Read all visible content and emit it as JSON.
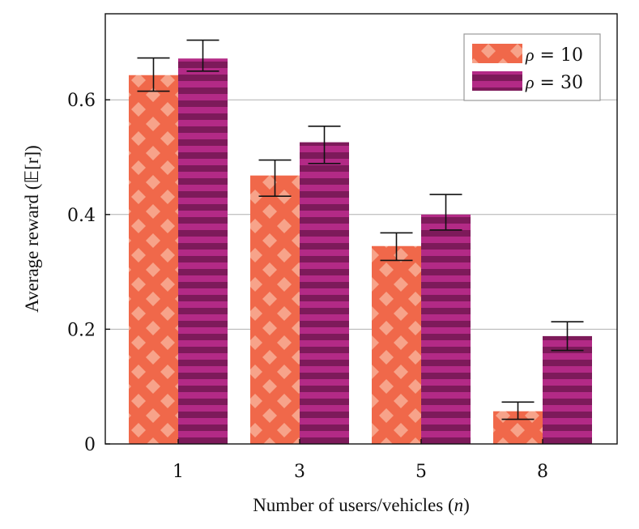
{
  "chart_data": {
    "type": "bar",
    "categories": [
      "1",
      "3",
      "5",
      "8"
    ],
    "series": [
      {
        "name": "ρ = 10",
        "name_math": "ρ",
        "name_value": "10",
        "color": "#f0684a",
        "pattern_color": "#f7a38a",
        "pattern": "diamonds",
        "values": [
          0.643,
          0.468,
          0.345,
          0.057
        ],
        "error_low": [
          0.615,
          0.432,
          0.32,
          0.043
        ],
        "error_high": [
          0.673,
          0.495,
          0.368,
          0.073
        ]
      },
      {
        "name": "ρ = 30",
        "name_math": "ρ",
        "name_value": "30",
        "color": "#b32a86",
        "pattern_color": "#7d1a5a",
        "pattern": "horizontal-stripes",
        "values": [
          0.672,
          0.526,
          0.4,
          0.188
        ],
        "error_low": [
          0.65,
          0.489,
          0.373,
          0.163
        ],
        "error_high": [
          0.704,
          0.554,
          0.435,
          0.213
        ]
      }
    ],
    "xlabel": "Number of users/vehicles",
    "xlabel_var": "n",
    "ylabel": "Average reward",
    "ylabel_expr": "𝔼[r]",
    "ylim": [
      0,
      0.75
    ],
    "yticks": [
      0,
      0.2,
      0.4,
      0.6
    ],
    "ytick_labels": [
      "0",
      "0.2",
      "0.4",
      "0.6"
    ],
    "grid": "horizontal",
    "legend_position": "top-right"
  }
}
